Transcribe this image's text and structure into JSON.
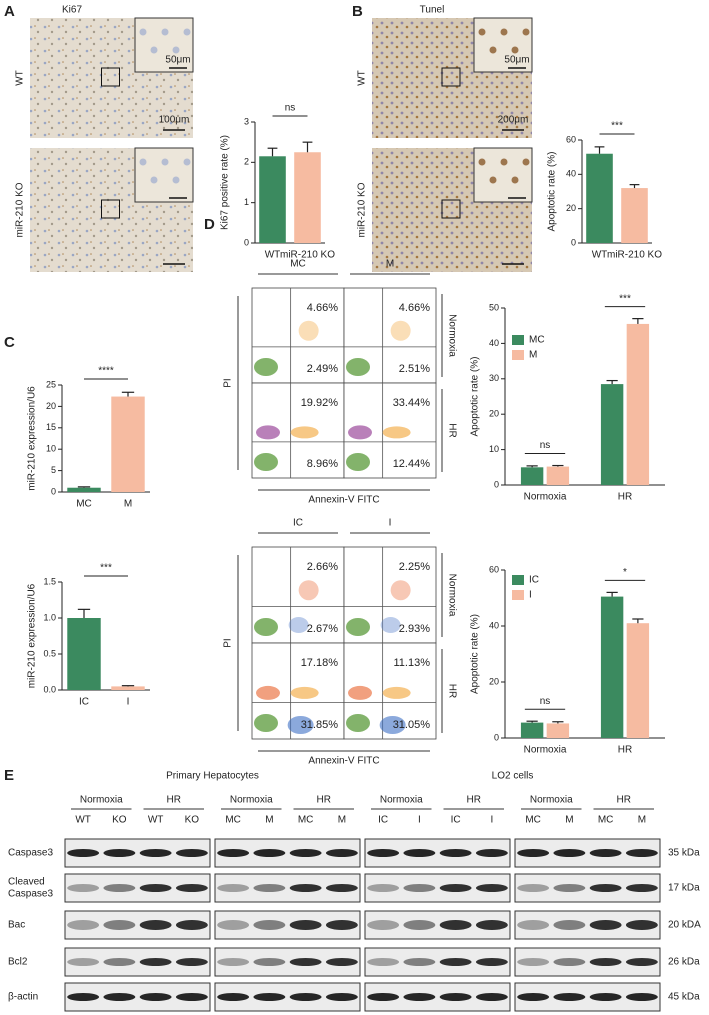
{
  "panels": [
    "A",
    "B",
    "C",
    "D",
    "E"
  ],
  "micrographs": [
    {
      "title": "Ki67",
      "rows": [
        "WT",
        "miR-210 KO"
      ],
      "scale_bars": [
        "50μm",
        "100μm"
      ]
    },
    {
      "title": "Tunel",
      "rows": [
        "WT",
        "miR-210 KO"
      ],
      "scale_bars": [
        "50μm",
        "200μm"
      ]
    }
  ],
  "flow_cytometry": [
    {
      "columns": [
        "MC",
        "M"
      ],
      "rows": [
        "Normoxia",
        "HR"
      ],
      "y_label": "PI",
      "x_label": "Annexin-V FITC",
      "cells": [
        {
          "upper_right": "4.66%",
          "lower_right": "2.49%"
        },
        {
          "upper_right": "4.66%",
          "lower_right": "2.51%"
        },
        {
          "upper_right": "19.92%",
          "lower_right": "8.96%"
        },
        {
          "upper_right": "33.44%",
          "lower_right": "12.44%"
        }
      ]
    },
    {
      "columns": [
        "IC",
        "I"
      ],
      "rows": [
        "Normoxia",
        "HR"
      ],
      "y_label": "PI",
      "x_label": "Annexin-V FITC",
      "cells": [
        {
          "upper_right": "2.66%",
          "lower_right": "2.67%"
        },
        {
          "upper_right": "2.25%",
          "lower_right": "2.93%"
        },
        {
          "upper_right": "17.18%",
          "lower_right": "31.85%"
        },
        {
          "upper_right": "11.13%",
          "lower_right": "31.05%"
        }
      ]
    }
  ],
  "chart_data": [
    {
      "type": "bar",
      "ylabel": "Ki67 positive rate (%)",
      "categories": [
        "WT",
        "miR-210 KO"
      ],
      "values": [
        2.15,
        2.25
      ],
      "errors": [
        0.2,
        0.25
      ],
      "colors": [
        "#3b8a5f",
        "#f6bba1"
      ],
      "ylim": [
        0,
        3
      ],
      "yticks": [
        0,
        1,
        2,
        3
      ],
      "annotation": "ns"
    },
    {
      "type": "bar",
      "ylabel": "Apoptotic rate (%)",
      "categories": [
        "WT",
        "miR-210 KO"
      ],
      "values": [
        52,
        32
      ],
      "errors": [
        4,
        2
      ],
      "colors": [
        "#3b8a5f",
        "#f6bba1"
      ],
      "ylim": [
        0,
        60
      ],
      "yticks": [
        0,
        20,
        40,
        60
      ],
      "annotation": "***"
    },
    {
      "type": "bar",
      "ylabel": "miR-210 expression/U6",
      "categories": [
        "MC",
        "M"
      ],
      "values": [
        1,
        22.3
      ],
      "errors": [
        0.2,
        1.0
      ],
      "colors": [
        "#3b8a5f",
        "#f6bba1"
      ],
      "ylim": [
        0,
        25
      ],
      "yticks": [
        0,
        5,
        10,
        15,
        20,
        25
      ],
      "annotation": "****"
    },
    {
      "type": "bar",
      "ylabel": "miR-210 expression/U6",
      "categories": [
        "IC",
        "I"
      ],
      "values": [
        1.0,
        0.05
      ],
      "errors": [
        0.12,
        0.01
      ],
      "colors": [
        "#3b8a5f",
        "#f6bba1"
      ],
      "ylim": [
        0,
        1.5
      ],
      "yticks": [
        {
          "value": 0,
          "label": "0.0"
        },
        {
          "value": 0.5,
          "label": "0.5"
        },
        {
          "value": 1,
          "label": "1.0"
        },
        {
          "value": 1.5,
          "label": "1.5"
        }
      ],
      "annotation": "***"
    },
    {
      "type": "grouped_bar",
      "ylabel": "Apoptotic rate (%)",
      "categories": [
        "Normoxia",
        "HR"
      ],
      "series": [
        {
          "name": "MC",
          "color": "#3b8a5f",
          "values": [
            5,
            28.5
          ],
          "errors": [
            0.4,
            1
          ]
        },
        {
          "name": "M",
          "color": "#f6bba1",
          "values": [
            5.2,
            45.5
          ],
          "errors": [
            0.3,
            1.5
          ]
        }
      ],
      "ylim": [
        0,
        50
      ],
      "yticks": [
        0,
        10,
        20,
        30,
        40,
        50
      ],
      "annotations": [
        "ns",
        "***"
      ],
      "legend": "upper left"
    },
    {
      "type": "grouped_bar",
      "ylabel": "Apoptotic rate (%)",
      "categories": [
        "Normoxia",
        "HR"
      ],
      "series": [
        {
          "name": "IC",
          "color": "#3b8a5f",
          "values": [
            5.5,
            50.5
          ],
          "errors": [
            0.5,
            1.5
          ]
        },
        {
          "name": "I",
          "color": "#f6bba1",
          "values": [
            5.2,
            41
          ],
          "errors": [
            0.6,
            1.5
          ]
        }
      ],
      "ylim": [
        0,
        60
      ],
      "yticks": [
        0,
        20,
        40,
        60
      ],
      "annotations": [
        "ns",
        "*"
      ],
      "legend": "upper left"
    }
  ],
  "western_blot": {
    "titles": [
      "Primary Hepatocytes",
      "LO2 cells"
    ],
    "blocks": [
      {
        "conditions": [
          "Normoxia",
          "HR"
        ],
        "lanes": [
          "WT",
          "KO",
          "WT",
          "KO"
        ]
      },
      {
        "conditions": [
          "Normoxia",
          "HR"
        ],
        "lanes": [
          "MC",
          "M",
          "MC",
          "M"
        ]
      },
      {
        "conditions": [
          "Normoxia",
          "HR"
        ],
        "lanes": [
          "IC",
          "I",
          "IC",
          "I"
        ]
      },
      {
        "conditions": [
          "Normoxia",
          "HR"
        ],
        "lanes": [
          "MC",
          "M",
          "MC",
          "M"
        ]
      }
    ],
    "proteins": [
      {
        "name": [
          "Caspase3"
        ],
        "size": "35 kDa"
      },
      {
        "name": [
          "Cleaved",
          "Caspase3"
        ],
        "size": "17 kDa"
      },
      {
        "name": [
          "Bac"
        ],
        "size": "20 kDA"
      },
      {
        "name": [
          "Bcl2"
        ],
        "size": "26 kDa"
      },
      {
        "name": [
          "β-actin"
        ],
        "size": "45 kDa"
      }
    ]
  }
}
